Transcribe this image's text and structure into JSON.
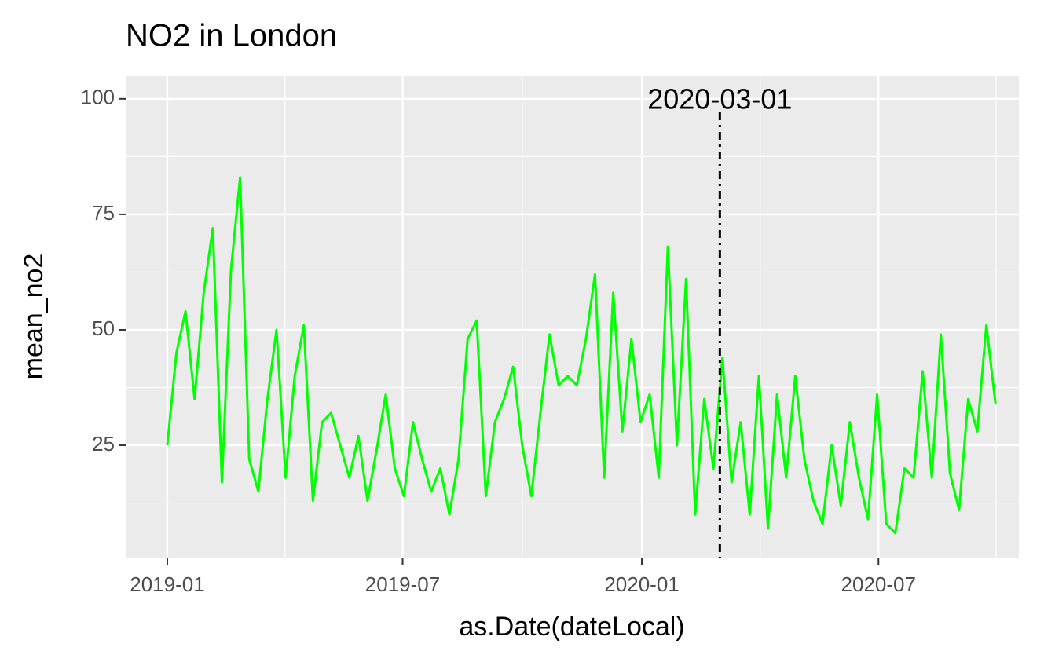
{
  "chart_data": {
    "type": "line",
    "title": "NO2 in London",
    "x_label": "as.Date(dateLocal)",
    "y_label": "mean_no2",
    "x": [
      "2019-01-01",
      "2019-01-08",
      "2019-01-15",
      "2019-01-22",
      "2019-01-29",
      "2019-02-05",
      "2019-02-12",
      "2019-02-19",
      "2019-02-26",
      "2019-03-05",
      "2019-03-12",
      "2019-03-19",
      "2019-03-26",
      "2019-04-02",
      "2019-04-09",
      "2019-04-16",
      "2019-04-23",
      "2019-04-30",
      "2019-05-07",
      "2019-05-14",
      "2019-05-21",
      "2019-05-28",
      "2019-06-04",
      "2019-06-11",
      "2019-06-18",
      "2019-06-25",
      "2019-07-02",
      "2019-07-09",
      "2019-07-16",
      "2019-07-23",
      "2019-07-30",
      "2019-08-06",
      "2019-08-13",
      "2019-08-20",
      "2019-08-27",
      "2019-09-03",
      "2019-09-10",
      "2019-09-17",
      "2019-09-24",
      "2019-10-01",
      "2019-10-08",
      "2019-10-15",
      "2019-10-22",
      "2019-10-29",
      "2019-11-05",
      "2019-11-12",
      "2019-11-19",
      "2019-11-26",
      "2019-12-03",
      "2019-12-10",
      "2019-12-17",
      "2019-12-24",
      "2019-12-31",
      "2020-01-07",
      "2020-01-14",
      "2020-01-21",
      "2020-01-28",
      "2020-02-04",
      "2020-02-11",
      "2020-02-18",
      "2020-02-25",
      "2020-03-03",
      "2020-03-10",
      "2020-03-17",
      "2020-03-24",
      "2020-03-31",
      "2020-04-07",
      "2020-04-14",
      "2020-04-21",
      "2020-04-28",
      "2020-05-05",
      "2020-05-12",
      "2020-05-19",
      "2020-05-26",
      "2020-06-02",
      "2020-06-09",
      "2020-06-16",
      "2020-06-23",
      "2020-06-30",
      "2020-07-07",
      "2020-07-14",
      "2020-07-21",
      "2020-07-28",
      "2020-08-04",
      "2020-08-11",
      "2020-08-18",
      "2020-08-25",
      "2020-09-01",
      "2020-09-08",
      "2020-09-15",
      "2020-09-22",
      "2020-09-29"
    ],
    "series": [
      {
        "name": "mean_no2",
        "color": "#00ff00",
        "values": [
          25,
          45,
          54,
          35,
          58,
          72,
          17,
          63,
          83,
          22,
          15,
          35,
          50,
          18,
          40,
          51,
          13,
          30,
          32,
          25,
          18,
          27,
          13,
          24,
          36,
          20,
          14,
          30,
          22,
          15,
          20,
          10,
          22,
          48,
          52,
          14,
          30,
          35,
          42,
          25,
          14,
          32,
          49,
          38,
          40,
          38,
          48,
          62,
          18,
          58,
          28,
          48,
          30,
          36,
          18,
          68,
          25,
          61,
          10,
          35,
          20,
          44,
          17,
          30,
          10,
          40,
          7,
          36,
          18,
          40,
          22,
          13,
          8,
          25,
          12,
          30,
          18,
          9,
          36,
          8,
          6,
          20,
          18,
          41,
          18,
          49,
          19,
          11,
          35,
          28,
          51,
          34
        ]
      }
    ],
    "xlim": [
      "2018-11-30",
      "2020-10-17"
    ],
    "xticks": [
      {
        "value": "2019-01-01",
        "label": "2019-01"
      },
      {
        "value": "2019-07-01",
        "label": "2019-07"
      },
      {
        "value": "2020-01-01",
        "label": "2020-01"
      },
      {
        "value": "2020-07-01",
        "label": "2020-07"
      }
    ],
    "ylim": [
      0.7,
      104.9
    ],
    "yticks": [
      25,
      50,
      75,
      100
    ],
    "grid": true,
    "vline": {
      "x": "2020-03-01"
    }
  }
}
